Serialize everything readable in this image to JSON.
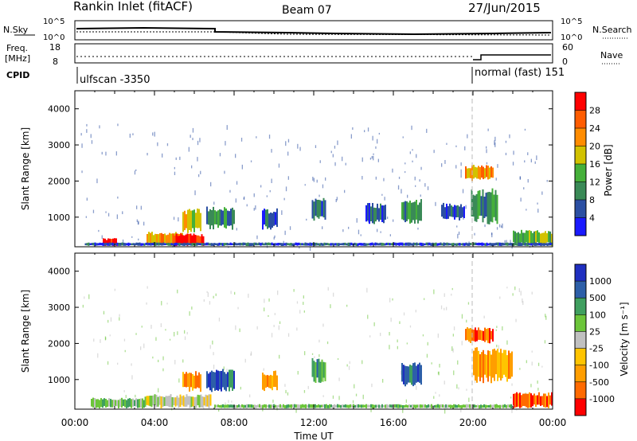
{
  "header": {
    "station": "Rankin Inlet (fitACF)",
    "beam": "Beam 07",
    "date": "27/Jun/2015"
  },
  "status_panel": {
    "nsky_label": "N.Sky",
    "nsearch_label": "N.Search",
    "noise_ticks": [
      "10^5",
      "10^0"
    ],
    "freq_label_1": "Freq.",
    "freq_label_2": "[MHz]",
    "freq_ticks": [
      "18",
      "8"
    ],
    "nave_label": "Nave",
    "nave_ticks": [
      "60",
      "0"
    ],
    "cpid_label": "CPID",
    "cpid_1": "ulfscan -3350",
    "cpid_2": "normal (fast) 151"
  },
  "colors": {
    "power": [
      "#1a1aff",
      "#2b4fa3",
      "#3a8a57",
      "#45b03a",
      "#d2c200",
      "#ff8c00",
      "#ff5c00",
      "#ff0000"
    ],
    "velocity": [
      "#ff0000",
      "#ff6a00",
      "#ff9e00",
      "#ffc400",
      "#c0c0c0",
      "#6cc53a",
      "#3f9f5f",
      "#2d5fa8",
      "#1f2fc0"
    ]
  },
  "chart_data": [
    {
      "type": "heatmap",
      "name": "power",
      "ylabel": "Slant Range [km]",
      "xlabel": "",
      "xticks": [
        "00:00",
        "04:00",
        "08:00",
        "12:00",
        "16:00",
        "20:00",
        "00:00"
      ],
      "yticks": [
        "1000",
        "2000",
        "3000",
        "4000"
      ],
      "xlim_hours": [
        0,
        24
      ],
      "ylim_km": [
        180,
        4500
      ],
      "colorbar": {
        "label": "Power [dB]",
        "ticks": [
          "4",
          "8",
          "12",
          "16",
          "20",
          "24",
          "28"
        ]
      },
      "regions": [
        {
          "t0": 1.4,
          "t1": 2.1,
          "r0": 200,
          "r1": 420,
          "level": 7
        },
        {
          "t0": 3.6,
          "t1": 5.4,
          "r0": 200,
          "r1": 600,
          "level": 5
        },
        {
          "t0": 4.9,
          "t1": 6.5,
          "r0": 200,
          "r1": 550,
          "level": 7
        },
        {
          "t0": 5.4,
          "t1": 6.3,
          "r0": 550,
          "r1": 1250,
          "level": 4
        },
        {
          "t0": 6.6,
          "t1": 8.0,
          "r0": 650,
          "r1": 1300,
          "level": 2
        },
        {
          "t0": 9.4,
          "t1": 10.2,
          "r0": 650,
          "r1": 1250,
          "level": 1
        },
        {
          "t0": 11.9,
          "t1": 12.6,
          "r0": 900,
          "r1": 1600,
          "level": 1
        },
        {
          "t0": 14.6,
          "t1": 15.6,
          "r0": 800,
          "r1": 1400,
          "level": 1
        },
        {
          "t0": 16.4,
          "t1": 17.4,
          "r0": 800,
          "r1": 1500,
          "level": 2
        },
        {
          "t0": 18.4,
          "t1": 19.6,
          "r0": 900,
          "r1": 1400,
          "level": 1
        },
        {
          "t0": 19.6,
          "t1": 21.0,
          "r0": 2000,
          "r1": 2450,
          "level": 5
        },
        {
          "t0": 19.9,
          "t1": 21.2,
          "r0": 800,
          "r1": 1800,
          "level": 2
        },
        {
          "t0": 22.0,
          "t1": 24.0,
          "r0": 200,
          "r1": 650,
          "level": 3
        },
        {
          "t0": 0.5,
          "t1": 24.0,
          "r0": 200,
          "r1": 300,
          "level": 1
        }
      ]
    },
    {
      "type": "heatmap",
      "name": "velocity",
      "ylabel": "Slant Range [km]",
      "xlabel": "Time UT",
      "xticks": [
        "00:00",
        "04:00",
        "08:00",
        "12:00",
        "16:00",
        "20:00",
        "00:00"
      ],
      "yticks": [
        "1000",
        "2000",
        "3000",
        "4000"
      ],
      "xlim_hours": [
        0,
        24
      ],
      "ylim_km": [
        180,
        4500
      ],
      "colorbar": {
        "label": "Velocity [m s⁻¹]",
        "ticks": [
          "1000",
          "500",
          "100",
          "25",
          "-25",
          "-100",
          "-500",
          "-1000"
        ]
      },
      "regions": [
        {
          "t0": 0.8,
          "t1": 3.5,
          "r0": 200,
          "r1": 500,
          "level": 5
        },
        {
          "t0": 3.5,
          "t1": 6.8,
          "r0": 200,
          "r1": 600,
          "level": 4
        },
        {
          "t0": 5.4,
          "t1": 6.3,
          "r0": 650,
          "r1": 1250,
          "level": 2
        },
        {
          "t0": 6.6,
          "t1": 8.0,
          "r0": 650,
          "r1": 1300,
          "level": 7
        },
        {
          "t0": 9.4,
          "t1": 10.2,
          "r0": 650,
          "r1": 1250,
          "level": 2
        },
        {
          "t0": 11.9,
          "t1": 12.6,
          "r0": 900,
          "r1": 1600,
          "level": 6
        },
        {
          "t0": 16.4,
          "t1": 17.4,
          "r0": 800,
          "r1": 1500,
          "level": 7
        },
        {
          "t0": 19.6,
          "t1": 21.0,
          "r0": 2000,
          "r1": 2450,
          "level": 1
        },
        {
          "t0": 20.0,
          "t1": 22.0,
          "r0": 900,
          "r1": 1900,
          "level": 2
        },
        {
          "t0": 22.0,
          "t1": 24.0,
          "r0": 200,
          "r1": 650,
          "level": 1
        },
        {
          "t0": 7.0,
          "t1": 22.0,
          "r0": 200,
          "r1": 320,
          "level": 5
        }
      ]
    }
  ]
}
